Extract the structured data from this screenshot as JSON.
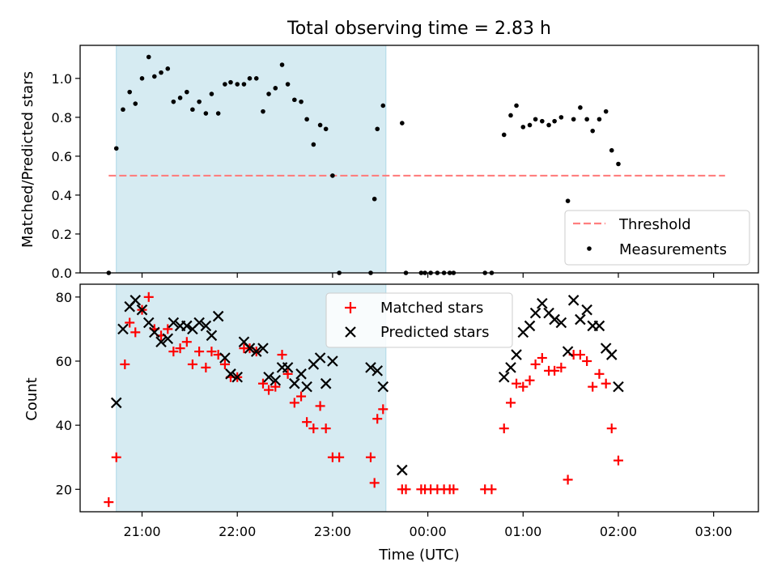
{
  "figure": {
    "title": "Total observing time = 2.83 h",
    "xlabel": "Time (UTC)",
    "x_ticks": [
      {
        "t": 21.0,
        "label": "21:00"
      },
      {
        "t": 22.0,
        "label": "22:00"
      },
      {
        "t": 23.0,
        "label": "23:00"
      },
      {
        "t": 24.0,
        "label": "00:00"
      },
      {
        "t": 25.0,
        "label": "01:00"
      },
      {
        "t": 26.0,
        "label": "02:00"
      },
      {
        "t": 27.0,
        "label": "03:00"
      }
    ],
    "xlim": [
      20.35,
      27.47
    ],
    "observing_window": {
      "start": 20.73,
      "end": 23.56,
      "color": "#add8e6"
    },
    "colors": {
      "threshold": "#ff7f7f",
      "measurements": "#000000",
      "matched": "#ff0000",
      "predicted": "#000000"
    }
  },
  "chart_data": [
    {
      "type": "scatter",
      "ylabel": "Matched/Predicted stars",
      "ylim": [
        0,
        1.17
      ],
      "yticks": [
        0.0,
        0.2,
        0.4,
        0.6,
        0.8,
        1.0
      ],
      "ytick_labels": [
        "0.0",
        "0.2",
        "0.4",
        "0.6",
        "0.8",
        "1.0"
      ],
      "legend_position": "bottom-right",
      "series": [
        {
          "name": "Threshold",
          "kind": "dashed-line",
          "x": [
            20.65,
            27.12
          ],
          "y": [
            0.5,
            0.5
          ]
        },
        {
          "name": "Measurements",
          "kind": "dots",
          "points": [
            [
              20.65,
              0.0
            ],
            [
              20.73,
              0.64
            ],
            [
              20.8,
              0.84
            ],
            [
              20.87,
              0.93
            ],
            [
              20.93,
              0.87
            ],
            [
              21.0,
              1.0
            ],
            [
              21.07,
              1.11
            ],
            [
              21.13,
              1.01
            ],
            [
              21.2,
              1.03
            ],
            [
              21.27,
              1.05
            ],
            [
              21.33,
              0.88
            ],
            [
              21.4,
              0.9
            ],
            [
              21.47,
              0.93
            ],
            [
              21.53,
              0.84
            ],
            [
              21.6,
              0.88
            ],
            [
              21.67,
              0.82
            ],
            [
              21.73,
              0.92
            ],
            [
              21.8,
              0.82
            ],
            [
              21.87,
              0.97
            ],
            [
              21.93,
              0.98
            ],
            [
              22.0,
              0.97
            ],
            [
              22.07,
              0.97
            ],
            [
              22.13,
              1.0
            ],
            [
              22.2,
              1.0
            ],
            [
              22.27,
              0.83
            ],
            [
              22.33,
              0.92
            ],
            [
              22.4,
              0.95
            ],
            [
              22.47,
              1.07
            ],
            [
              22.53,
              0.97
            ],
            [
              22.6,
              0.89
            ],
            [
              22.67,
              0.88
            ],
            [
              22.73,
              0.79
            ],
            [
              22.8,
              0.66
            ],
            [
              22.87,
              0.76
            ],
            [
              22.93,
              0.74
            ],
            [
              23.0,
              0.5
            ],
            [
              23.07,
              0.0
            ],
            [
              23.4,
              0.0
            ],
            [
              23.44,
              0.38
            ],
            [
              23.47,
              0.74
            ],
            [
              23.53,
              0.86
            ],
            [
              23.73,
              0.77
            ],
            [
              23.77,
              0.0
            ],
            [
              23.93,
              0.0
            ],
            [
              23.97,
              0.0
            ],
            [
              24.03,
              0.0
            ],
            [
              24.1,
              0.0
            ],
            [
              24.17,
              0.0
            ],
            [
              24.23,
              0.0
            ],
            [
              24.27,
              0.0
            ],
            [
              24.6,
              0.0
            ],
            [
              24.67,
              0.0
            ],
            [
              24.8,
              0.71
            ],
            [
              24.87,
              0.81
            ],
            [
              24.93,
              0.86
            ],
            [
              25.0,
              0.75
            ],
            [
              25.07,
              0.76
            ],
            [
              25.13,
              0.79
            ],
            [
              25.2,
              0.78
            ],
            [
              25.27,
              0.76
            ],
            [
              25.33,
              0.78
            ],
            [
              25.4,
              0.8
            ],
            [
              25.47,
              0.37
            ],
            [
              25.53,
              0.79
            ],
            [
              25.6,
              0.85
            ],
            [
              25.67,
              0.79
            ],
            [
              25.73,
              0.73
            ],
            [
              25.8,
              0.79
            ],
            [
              25.87,
              0.83
            ],
            [
              25.93,
              0.63
            ],
            [
              26.0,
              0.56
            ]
          ]
        }
      ]
    },
    {
      "type": "scatter",
      "ylabel": "Count",
      "ylim": [
        13,
        84
      ],
      "yticks": [
        20,
        40,
        60,
        80
      ],
      "ytick_labels": [
        "20",
        "40",
        "60",
        "80"
      ],
      "legend_position": "top-center",
      "series": [
        {
          "name": "Matched stars",
          "marker": "+",
          "points": [
            [
              20.65,
              16
            ],
            [
              20.73,
              30
            ],
            [
              20.82,
              59
            ],
            [
              20.87,
              72
            ],
            [
              20.93,
              69
            ],
            [
              21.0,
              76
            ],
            [
              21.07,
              80
            ],
            [
              21.13,
              70
            ],
            [
              21.2,
              68
            ],
            [
              21.27,
              70
            ],
            [
              21.33,
              63
            ],
            [
              21.4,
              64
            ],
            [
              21.47,
              66
            ],
            [
              21.53,
              59
            ],
            [
              21.6,
              63
            ],
            [
              21.67,
              58
            ],
            [
              21.73,
              63
            ],
            [
              21.8,
              62
            ],
            [
              21.87,
              59
            ],
            [
              21.93,
              55
            ],
            [
              22.0,
              55
            ],
            [
              22.07,
              64
            ],
            [
              22.13,
              64
            ],
            [
              22.2,
              63
            ],
            [
              22.27,
              53
            ],
            [
              22.33,
              51
            ],
            [
              22.4,
              52
            ],
            [
              22.47,
              62
            ],
            [
              22.53,
              56
            ],
            [
              22.6,
              47
            ],
            [
              22.67,
              49
            ],
            [
              22.73,
              41
            ],
            [
              22.8,
              39
            ],
            [
              22.87,
              46
            ],
            [
              22.93,
              39
            ],
            [
              23.0,
              30
            ],
            [
              23.07,
              30
            ],
            [
              23.4,
              30
            ],
            [
              23.44,
              22
            ],
            [
              23.47,
              42
            ],
            [
              23.53,
              45
            ],
            [
              23.73,
              20
            ],
            [
              23.77,
              20
            ],
            [
              23.93,
              20
            ],
            [
              23.97,
              20
            ],
            [
              24.03,
              20
            ],
            [
              24.1,
              20
            ],
            [
              24.17,
              20
            ],
            [
              24.23,
              20
            ],
            [
              24.27,
              20
            ],
            [
              24.6,
              20
            ],
            [
              24.67,
              20
            ],
            [
              24.8,
              39
            ],
            [
              24.87,
              47
            ],
            [
              24.93,
              53
            ],
            [
              25.0,
              52
            ],
            [
              25.07,
              54
            ],
            [
              25.13,
              59
            ],
            [
              25.2,
              61
            ],
            [
              25.27,
              57
            ],
            [
              25.33,
              57
            ],
            [
              25.4,
              58
            ],
            [
              25.47,
              23
            ],
            [
              25.53,
              62
            ],
            [
              25.6,
              62
            ],
            [
              25.67,
              60
            ],
            [
              25.73,
              52
            ],
            [
              25.8,
              56
            ],
            [
              25.87,
              53
            ],
            [
              25.93,
              39
            ],
            [
              26.0,
              29
            ]
          ]
        },
        {
          "name": "Predicted stars",
          "marker": "x",
          "points": [
            [
              20.73,
              47
            ],
            [
              20.8,
              70
            ],
            [
              20.87,
              77
            ],
            [
              20.93,
              79
            ],
            [
              21.0,
              76
            ],
            [
              21.07,
              72
            ],
            [
              21.13,
              69
            ],
            [
              21.2,
              66
            ],
            [
              21.27,
              67
            ],
            [
              21.33,
              72
            ],
            [
              21.4,
              71
            ],
            [
              21.47,
              71
            ],
            [
              21.53,
              70
            ],
            [
              21.6,
              72
            ],
            [
              21.67,
              71
            ],
            [
              21.73,
              68
            ],
            [
              21.8,
              74
            ],
            [
              21.87,
              61
            ],
            [
              21.93,
              56
            ],
            [
              22.0,
              55
            ],
            [
              22.07,
              66
            ],
            [
              22.13,
              64
            ],
            [
              22.2,
              63
            ],
            [
              22.27,
              64
            ],
            [
              22.33,
              55
            ],
            [
              22.4,
              54
            ],
            [
              22.47,
              58
            ],
            [
              22.53,
              58
            ],
            [
              22.6,
              53
            ],
            [
              22.67,
              56
            ],
            [
              22.73,
              52
            ],
            [
              22.8,
              59
            ],
            [
              22.87,
              61
            ],
            [
              22.93,
              53
            ],
            [
              23.0,
              60
            ],
            [
              23.4,
              58
            ],
            [
              23.47,
              57
            ],
            [
              23.53,
              52
            ],
            [
              23.73,
              26
            ],
            [
              24.8,
              55
            ],
            [
              24.87,
              58
            ],
            [
              24.93,
              62
            ],
            [
              25.0,
              69
            ],
            [
              25.07,
              71
            ],
            [
              25.13,
              75
            ],
            [
              25.2,
              78
            ],
            [
              25.27,
              75
            ],
            [
              25.33,
              73
            ],
            [
              25.4,
              72
            ],
            [
              25.47,
              63
            ],
            [
              25.53,
              79
            ],
            [
              25.6,
              73
            ],
            [
              25.67,
              76
            ],
            [
              25.73,
              71
            ],
            [
              25.8,
              71
            ],
            [
              25.87,
              64
            ],
            [
              25.93,
              62
            ],
            [
              26.0,
              52
            ]
          ]
        }
      ]
    }
  ]
}
